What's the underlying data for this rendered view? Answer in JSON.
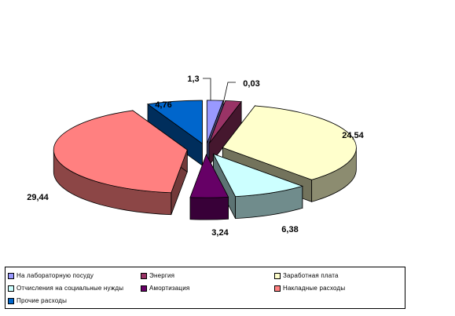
{
  "chart_data": {
    "type": "pie",
    "style": "3d-exploded",
    "legend_position": "bottom",
    "series": [
      {
        "name": "На лабораторную посуду",
        "value": 1.3,
        "label": "1,3",
        "color": "#9999ff"
      },
      {
        "name": "Энергия",
        "value": 0.03,
        "label": "0,03",
        "color": "#993366"
      },
      {
        "name": "Заработная плата",
        "value": 24.54,
        "label": "24,54",
        "color": "#ffffcc"
      },
      {
        "name": "Отчисления на социальные нужды",
        "value": 6.38,
        "label": "6,38",
        "color": "#ccffff"
      },
      {
        "name": "Амортизация",
        "value": 3.24,
        "label": "3,24",
        "color": "#660066"
      },
      {
        "name": "Накладные расходы",
        "value": 29.44,
        "label": "29,44",
        "color": "#ff8080"
      },
      {
        "name": "Прочие расходы",
        "value": 4.76,
        "label": "4,76",
        "color": "#0066cc"
      }
    ]
  }
}
